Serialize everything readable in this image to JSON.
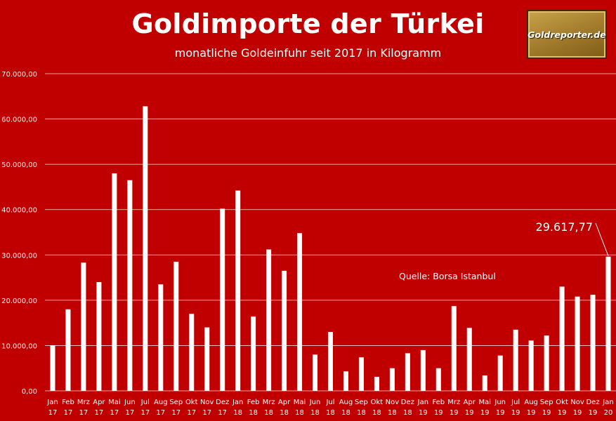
{
  "header": {
    "title": "Goldimporte der Türkei",
    "subtitle": "monatliche Goldeinfuhr seit 2017 in Kilogramm"
  },
  "logo": {
    "text": "Goldreporter.de"
  },
  "annotations": {
    "source": "Quelle: Borsa Istanbul",
    "last_value_label": "29.617,77"
  },
  "colors": {
    "background": "#c00000",
    "bars": "#ffffff",
    "grid": "#ffffff",
    "text": "#ffffff"
  },
  "chart_data": {
    "type": "bar",
    "title": "Goldimporte der Türkei",
    "subtitle": "monatliche Goldeinfuhr seit 2017 in Kilogramm",
    "ylim": [
      0,
      70000
    ],
    "yticks": [
      0,
      10000,
      20000,
      30000,
      40000,
      50000,
      60000,
      70000
    ],
    "ytick_labels": [
      "0,00",
      "10.000,00",
      "20.000,00",
      "30.000,00",
      "40.000,00",
      "50.000,00",
      "60.000,00",
      "70.000,00"
    ],
    "grid": true,
    "legend": "none",
    "categories": [
      [
        "Jan",
        "17"
      ],
      [
        "Feb",
        "17"
      ],
      [
        "Mrz",
        "17"
      ],
      [
        "Apr",
        "17"
      ],
      [
        "Mai",
        "17"
      ],
      [
        "Jun",
        "17"
      ],
      [
        "Jul",
        "17"
      ],
      [
        "Aug",
        "17"
      ],
      [
        "Sep",
        "17"
      ],
      [
        "Okt",
        "17"
      ],
      [
        "Nov",
        "17"
      ],
      [
        "Dez",
        "17"
      ],
      [
        "Jan",
        "18"
      ],
      [
        "Feb",
        "18"
      ],
      [
        "Mrz",
        "18"
      ],
      [
        "Apr",
        "18"
      ],
      [
        "Mai",
        "18"
      ],
      [
        "Jun",
        "18"
      ],
      [
        "Jul",
        "18"
      ],
      [
        "Aug",
        "18"
      ],
      [
        "Sep",
        "18"
      ],
      [
        "Okt",
        "18"
      ],
      [
        "Nov",
        "18"
      ],
      [
        "Dez",
        "18"
      ],
      [
        "Jan",
        "19"
      ],
      [
        "Feb",
        "19"
      ],
      [
        "Mrz",
        "19"
      ],
      [
        "Apr",
        "19"
      ],
      [
        "Mai",
        "19"
      ],
      [
        "Jun",
        "19"
      ],
      [
        "Jul",
        "19"
      ],
      [
        "Aug",
        "19"
      ],
      [
        "Sep",
        "19"
      ],
      [
        "Okt",
        "19"
      ],
      [
        "Nov",
        "19"
      ],
      [
        "Dez",
        "19"
      ],
      [
        "Jan",
        "20"
      ]
    ],
    "values": [
      10000,
      18000,
      28300,
      24000,
      48000,
      46500,
      62800,
      23500,
      28500,
      17000,
      14000,
      40200,
      44200,
      16400,
      31200,
      26500,
      34800,
      8000,
      13000,
      4300,
      7400,
      3100,
      5000,
      8300,
      9000,
      5000,
      18700,
      13900,
      3400,
      7800,
      13500,
      11100,
      12200,
      23000,
      20800,
      21200,
      29617.77
    ]
  }
}
